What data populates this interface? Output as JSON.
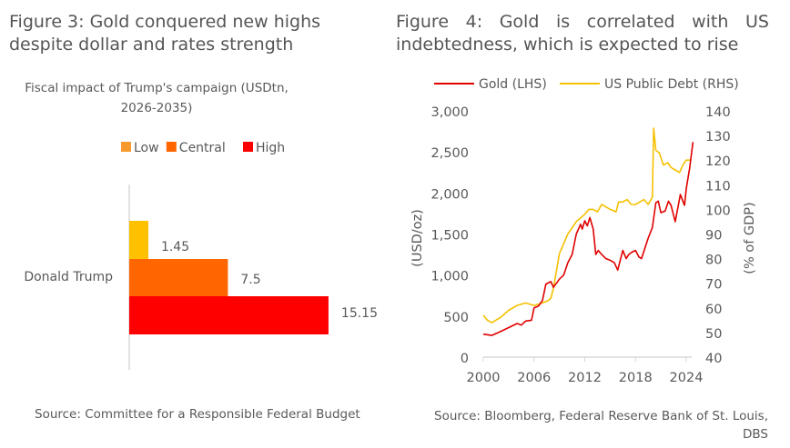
{
  "figure3": {
    "title": "Figure 3: Gold conquered new highs despite dollar and rates strength",
    "source": "Source: Committee for a Responsible Federal Budget"
  },
  "figure4": {
    "title": "Figure 4: Gold is correlated with US indebtedness, which is expected to rise",
    "source": "Source: Bloomberg, Federal Reserve Bank of St. Louis, DBS"
  },
  "chart_data": [
    {
      "type": "bar",
      "orientation": "horizontal",
      "title": "Fiscal impact of Trump's campaign (USDtn, 2026-2035)",
      "categories": [
        "Donald Trump"
      ],
      "series": [
        {
          "name": "Low",
          "values": [
            1.45
          ],
          "color": "#FFC000",
          "legend_color": "#F79A2E"
        },
        {
          "name": "Central",
          "values": [
            7.5
          ],
          "color": "#FF6600",
          "legend_color": "#FF6600"
        },
        {
          "name": "High",
          "values": [
            15.15
          ],
          "color": "#FF0000",
          "legend_color": "#FF0000"
        }
      ],
      "data_labels": [
        "1.45",
        "7.5",
        "15.15"
      ],
      "xlim": [
        0,
        16
      ],
      "legend": "top"
    },
    {
      "type": "line",
      "legend": "top",
      "ylabel": "(USD/oz)",
      "y2label": "(% of GDP)",
      "ylim": [
        0,
        3000
      ],
      "y2lim": [
        40,
        140
      ],
      "xlim": [
        2000,
        2025
      ],
      "yticks": [
        "0",
        "500",
        "1,000",
        "1,500",
        "2,000",
        "2,500",
        "3,000"
      ],
      "y2ticks": [
        "40",
        "50",
        "60",
        "70",
        "80",
        "90",
        "100",
        "110",
        "120",
        "130",
        "140"
      ],
      "xticks": [
        "2000",
        "2006",
        "2012",
        "2018",
        "2024"
      ],
      "series": [
        {
          "name": "Gold (LHS)",
          "axis": "left",
          "color": "#E00000",
          "x": [
            2000,
            2001,
            2002,
            2003,
            2004,
            2004.5,
            2005,
            2005.7,
            2006,
            2006.5,
            2007,
            2007.4,
            2008,
            2008.3,
            2009,
            2009.5,
            2010,
            2010.5,
            2011,
            2011.5,
            2011.7,
            2012,
            2012.3,
            2012.6,
            2013,
            2013.3,
            2013.6,
            2014,
            2014.5,
            2015,
            2015.5,
            2015.9,
            2016.5,
            2016.9,
            2017.2,
            2017.6,
            2018,
            2018.4,
            2018.7,
            2019,
            2019.5,
            2020,
            2020.4,
            2020.7,
            2021,
            2021.5,
            2021.9,
            2022.2,
            2022.7,
            2023.3,
            2023.8,
            2024,
            2024.4,
            2024.8
          ],
          "values": [
            280,
            265,
            310,
            360,
            410,
            390,
            440,
            450,
            600,
            620,
            690,
            890,
            920,
            850,
            950,
            1000,
            1150,
            1250,
            1500,
            1620,
            1560,
            1660,
            1600,
            1700,
            1560,
            1250,
            1300,
            1250,
            1200,
            1180,
            1150,
            1060,
            1300,
            1200,
            1250,
            1280,
            1300,
            1220,
            1200,
            1290,
            1450,
            1580,
            1880,
            1900,
            1760,
            1780,
            1900,
            1850,
            1650,
            1980,
            1850,
            2050,
            2300,
            2620
          ]
        },
        {
          "name": "US Public Debt (RHS)",
          "axis": "right",
          "color": "#F5C000",
          "x": [
            2000,
            2000.5,
            2001,
            2002,
            2003,
            2004,
            2005,
            2006,
            2007,
            2007.7,
            2008,
            2008.3,
            2009,
            2010,
            2011,
            2012,
            2012.5,
            2013,
            2013.5,
            2014,
            2014.5,
            2015,
            2015.7,
            2016,
            2016.5,
            2017,
            2017.5,
            2018,
            2018.5,
            2019,
            2019.5,
            2020,
            2020.15,
            2020.4,
            2020.8,
            2021.3,
            2021.8,
            2022.2,
            2022.7,
            2023.2,
            2023.6,
            2024,
            2024.5
          ],
          "values": [
            57,
            55,
            54,
            56,
            59,
            61,
            62,
            61,
            62,
            63,
            64,
            68,
            82,
            90,
            95,
            98,
            100,
            100,
            99,
            102,
            101,
            100,
            99,
            103,
            103,
            104,
            102,
            102,
            103,
            104,
            102,
            105,
            133,
            124,
            123,
            118,
            119,
            117,
            116,
            115,
            118,
            120,
            120
          ]
        }
      ]
    }
  ]
}
